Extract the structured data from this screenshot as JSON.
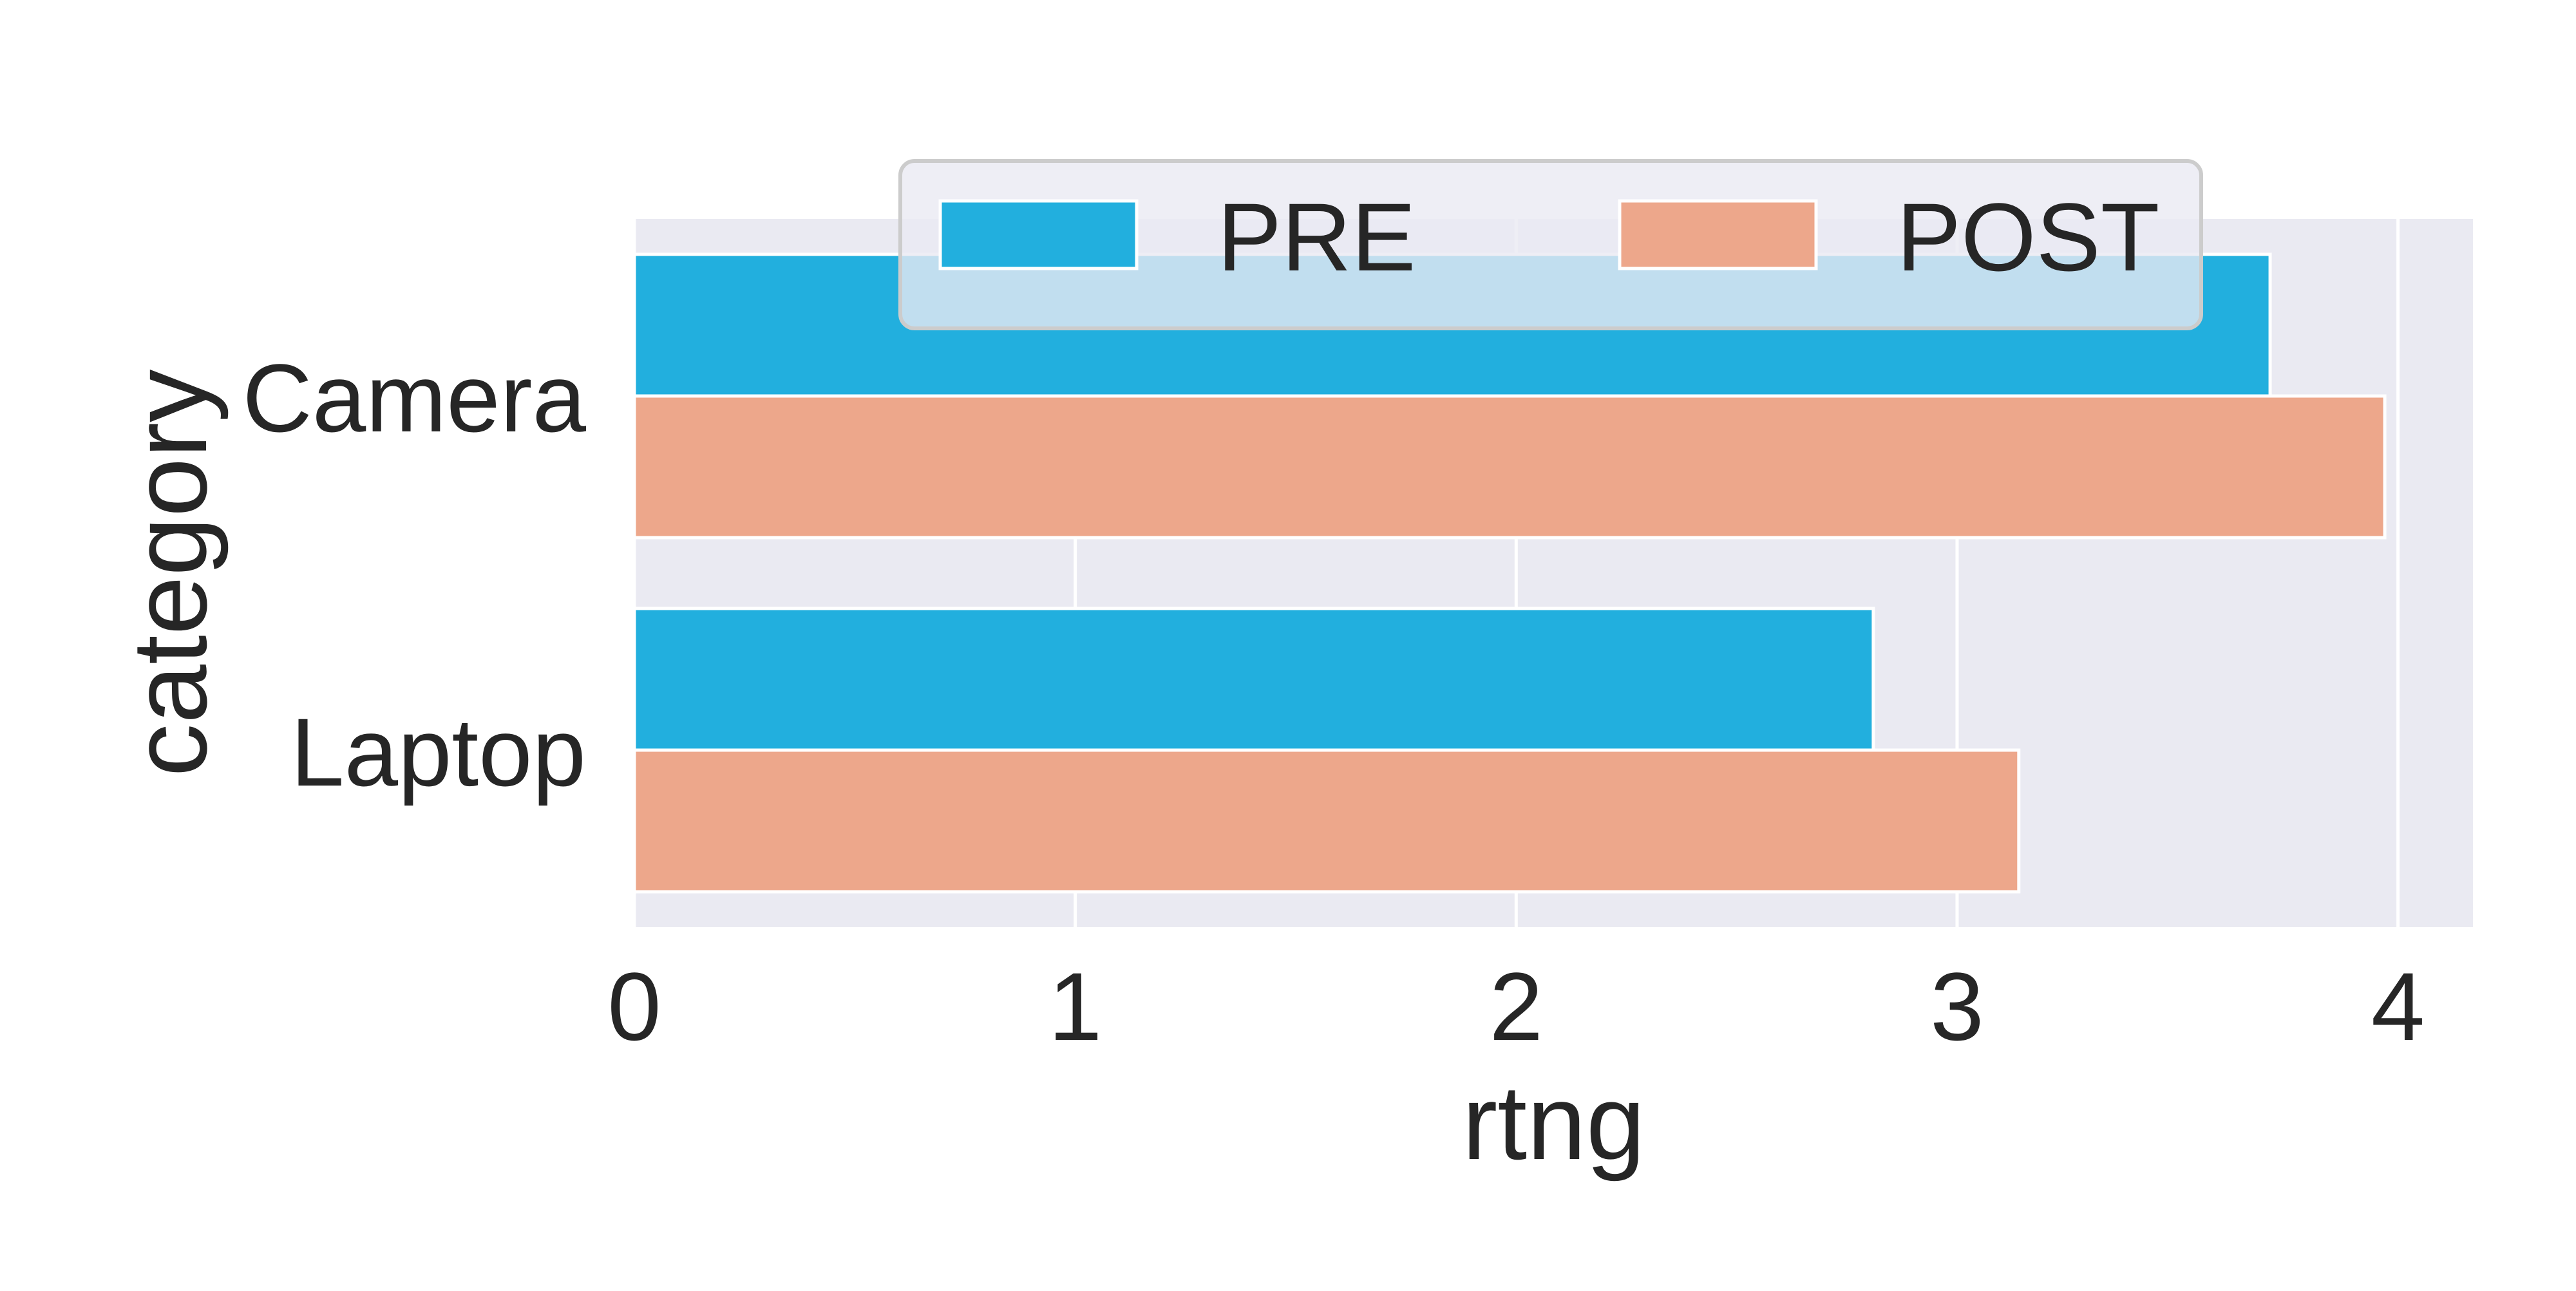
{
  "chart_data": {
    "type": "bar",
    "orientation": "horizontal",
    "categories": [
      "Camera",
      "Laptop"
    ],
    "series": [
      {
        "name": "PRE",
        "values": [
          3.71,
          2.81
        ],
        "color": "#22afde"
      },
      {
        "name": "POST",
        "values": [
          3.97,
          3.14
        ],
        "color": "#eda78b"
      }
    ],
    "xlabel": "rtng",
    "ylabel": "category",
    "xlim": [
      0,
      4.17
    ],
    "xticks": [
      0,
      1,
      2,
      3,
      4
    ],
    "grid": true,
    "legend_position": "upper-center"
  },
  "colors": {
    "plot_background": "#eaeaf2",
    "grid": "#ffffff",
    "text": "#262626"
  }
}
